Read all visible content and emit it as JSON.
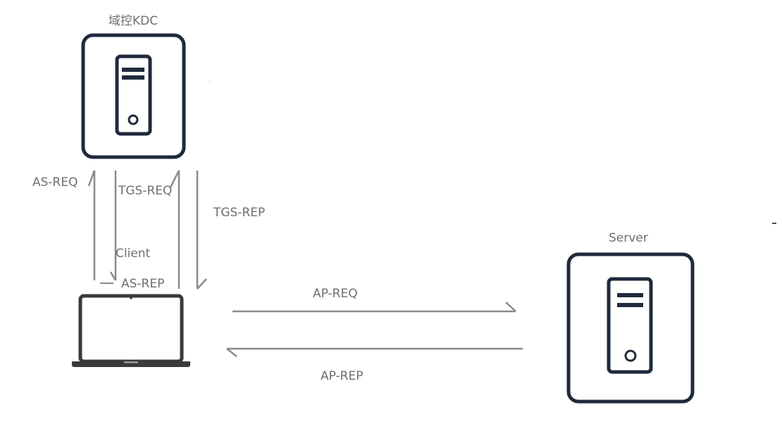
{
  "nodes": {
    "kdc": {
      "label": "域控KDC",
      "icon": "server-tower-icon"
    },
    "server": {
      "label": "Server",
      "icon": "server-tower-icon"
    },
    "client": {
      "label": "Client",
      "icon": "laptop-icon"
    }
  },
  "messages": {
    "as_req": "AS-REQ",
    "as_rep": "AS-REP",
    "tgs_req": "TGS-REQ",
    "tgs_rep": "TGS-REP",
    "ap_req": "AP-REQ",
    "ap_rep": "AP-REP"
  },
  "colors": {
    "icon_stroke": "#1f2a3c",
    "arrow": "#8a8a8a",
    "text": "#6f6f6f",
    "background": "#ffffff"
  }
}
